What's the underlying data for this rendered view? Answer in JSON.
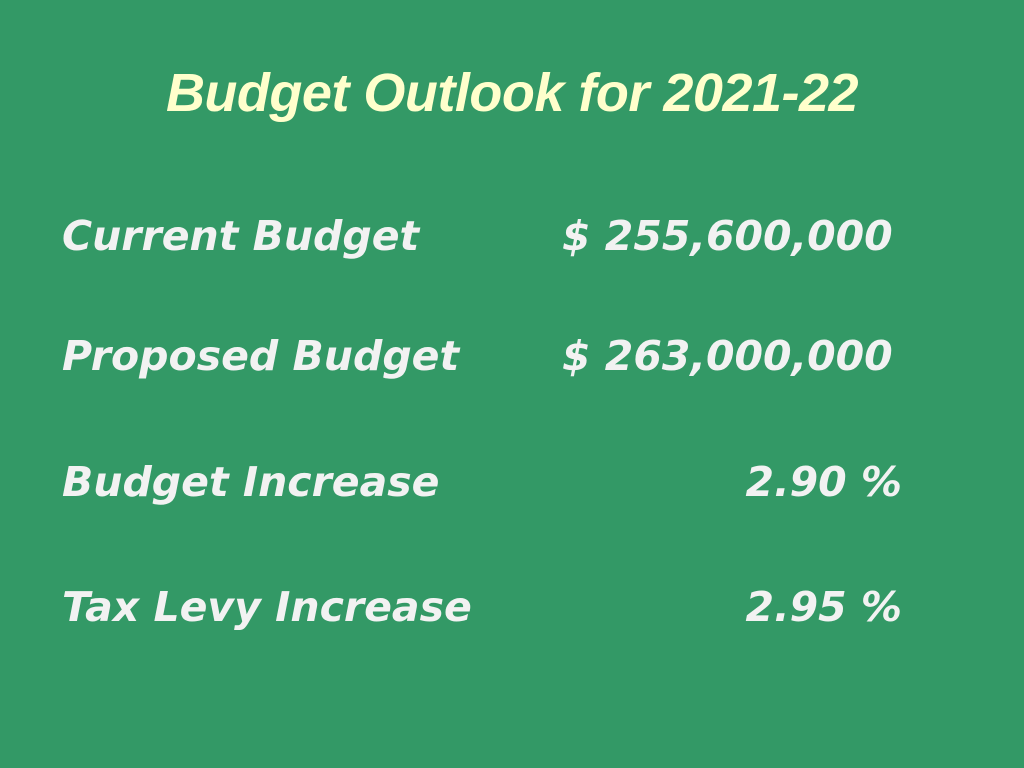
{
  "slide": {
    "title": "Budget Outlook for 2021-22",
    "rows": [
      {
        "label": "Current Budget",
        "value": "$ 255,600,000"
      },
      {
        "label": "Proposed Budget",
        "value": "$ 263,000,000"
      },
      {
        "label": "Budget Increase",
        "value": "2.90 %"
      },
      {
        "label": "Tax Levy Increase",
        "value": "2.95 %"
      }
    ]
  },
  "colors": {
    "background": "#339966",
    "title": "#ffffcc",
    "text": "#f2f2f2"
  }
}
